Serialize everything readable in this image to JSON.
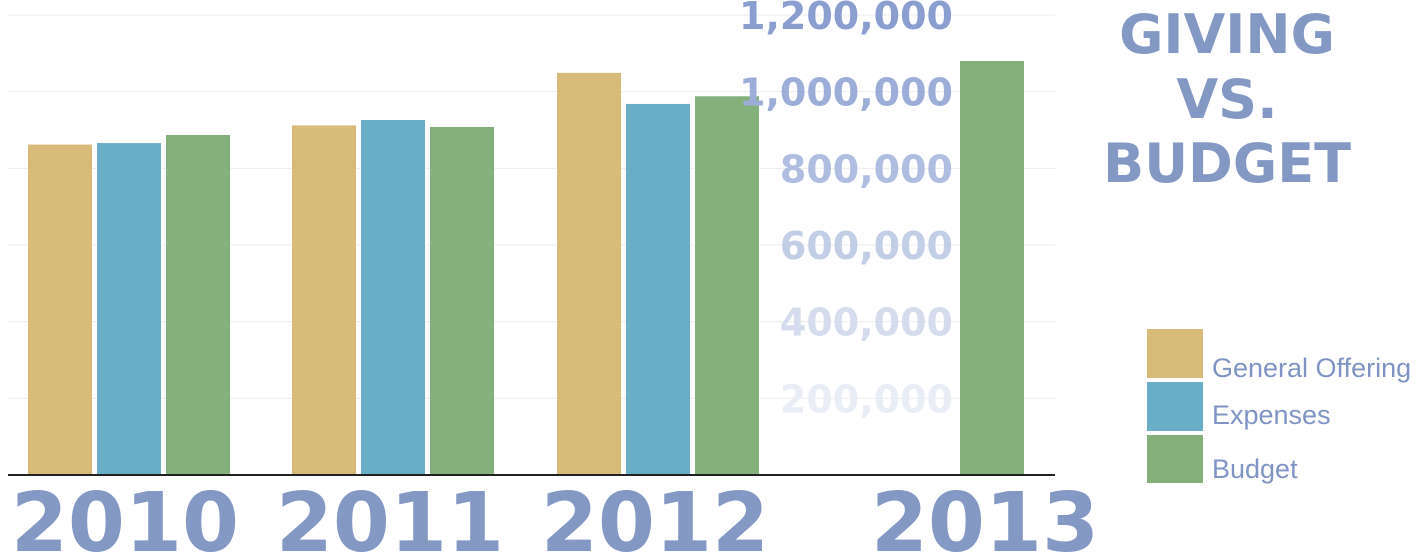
{
  "chart_data": {
    "type": "bar",
    "title_lines": [
      "GIVING",
      "VS.",
      "BUDGET"
    ],
    "categories": [
      "2010",
      "2011",
      "2012",
      "2013"
    ],
    "series": [
      {
        "name": "General Offering",
        "color": "#d8bb78",
        "values": [
          862000,
          912000,
          1049000,
          null
        ]
      },
      {
        "name": "Expenses",
        "color": "#6aadc7",
        "values": [
          866000,
          926000,
          968000,
          null
        ]
      },
      {
        "name": "Budget",
        "color": "#84b07c",
        "values": [
          887000,
          908000,
          988000,
          1080000
        ]
      }
    ],
    "yticks": [
      {
        "value": 200000,
        "label": "200,000",
        "color": "#e9edf6"
      },
      {
        "value": 400000,
        "label": "400,000",
        "color": "#d4dcee"
      },
      {
        "value": 600000,
        "label": "600,000",
        "color": "#c2cde6"
      },
      {
        "value": 800000,
        "label": "800,000",
        "color": "#afbee0"
      },
      {
        "value": 1000000,
        "label": "1,000,000",
        "color": "#9cadd8"
      },
      {
        "value": 1200000,
        "label": "1,200,000",
        "color": "#8a9ed0"
      }
    ],
    "ylim": [
      0,
      1200000
    ],
    "grid": true,
    "legend_position": "right"
  }
}
